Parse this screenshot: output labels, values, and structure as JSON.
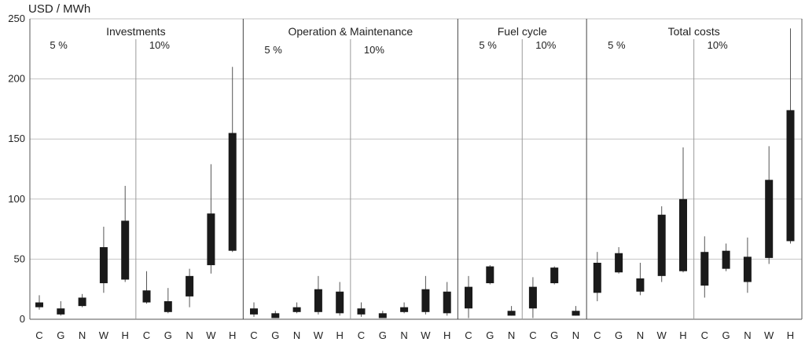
{
  "chart_data": {
    "type": "candlestick",
    "ylabel": "USD / MWh",
    "ylim": [
      0,
      250
    ],
    "yticks": [
      "0",
      "50",
      "100",
      "150",
      "200",
      "250"
    ],
    "grid": "horizontal",
    "categories": [
      "C",
      "G",
      "N",
      "W",
      "H"
    ],
    "groups": [
      {
        "title": "Investments",
        "subgroups": [
          {
            "rate": "5 %",
            "items": [
              {
                "cat": "C",
                "min": 8,
                "q1": 10,
                "q3": 14,
                "max": 20
              },
              {
                "cat": "G",
                "min": 3,
                "q1": 4,
                "q3": 9,
                "max": 15
              },
              {
                "cat": "N",
                "min": 10,
                "q1": 11,
                "q3": 18,
                "max": 21
              },
              {
                "cat": "W",
                "min": 22,
                "q1": 30,
                "q3": 60,
                "max": 77
              },
              {
                "cat": "H",
                "min": 31,
                "q1": 33,
                "q3": 82,
                "max": 111
              }
            ]
          },
          {
            "rate": "10%",
            "items": [
              {
                "cat": "C",
                "min": 13,
                "q1": 14,
                "q3": 24,
                "max": 40
              },
              {
                "cat": "G",
                "min": 5,
                "q1": 6,
                "q3": 15,
                "max": 26
              },
              {
                "cat": "N",
                "min": 10,
                "q1": 19,
                "q3": 36,
                "max": 42
              },
              {
                "cat": "W",
                "min": 38,
                "q1": 45,
                "q3": 88,
                "max": 129
              },
              {
                "cat": "H",
                "min": 56,
                "q1": 57,
                "q3": 155,
                "max": 210
              }
            ]
          }
        ]
      },
      {
        "title": "Operation & Maintenance",
        "subgroups": [
          {
            "rate": "5 %",
            "items": [
              {
                "cat": "C",
                "min": 2,
                "q1": 4,
                "q3": 9,
                "max": 14
              },
              {
                "cat": "G",
                "min": 1,
                "q1": 1,
                "q3": 5,
                "max": 7
              },
              {
                "cat": "N",
                "min": 5,
                "q1": 6,
                "q3": 10,
                "max": 14
              },
              {
                "cat": "W",
                "min": 4,
                "q1": 6,
                "q3": 25,
                "max": 36
              },
              {
                "cat": "H",
                "min": 3,
                "q1": 5,
                "q3": 23,
                "max": 31
              }
            ]
          },
          {
            "rate": "10%",
            "items": [
              {
                "cat": "C",
                "min": 2,
                "q1": 4,
                "q3": 9,
                "max": 14
              },
              {
                "cat": "G",
                "min": 1,
                "q1": 1,
                "q3": 5,
                "max": 7
              },
              {
                "cat": "N",
                "min": 5,
                "q1": 6,
                "q3": 10,
                "max": 14
              },
              {
                "cat": "W",
                "min": 4,
                "q1": 6,
                "q3": 25,
                "max": 36
              },
              {
                "cat": "H",
                "min": 3,
                "q1": 5,
                "q3": 23,
                "max": 31
              }
            ]
          }
        ]
      },
      {
        "title": "Fuel cycle",
        "subgroups": [
          {
            "rate": "5 %",
            "items": [
              {
                "cat": "C",
                "min": 1,
                "q1": 9,
                "q3": 27,
                "max": 36
              },
              {
                "cat": "G",
                "min": 29,
                "q1": 30,
                "q3": 44,
                "max": 45
              },
              {
                "cat": "N",
                "min": 3,
                "q1": 3,
                "q3": 7,
                "max": 11
              }
            ]
          },
          {
            "rate": "10%",
            "items": [
              {
                "cat": "C",
                "min": 1,
                "q1": 9,
                "q3": 27,
                "max": 35
              },
              {
                "cat": "G",
                "min": 29,
                "q1": 30,
                "q3": 43,
                "max": 44
              },
              {
                "cat": "N",
                "min": 3,
                "q1": 3,
                "q3": 7,
                "max": 11
              }
            ]
          }
        ]
      },
      {
        "title": "Total costs",
        "subgroups": [
          {
            "rate": "5 %",
            "items": [
              {
                "cat": "C",
                "min": 15,
                "q1": 22,
                "q3": 47,
                "max": 56
              },
              {
                "cat": "G",
                "min": 38,
                "q1": 39,
                "q3": 55,
                "max": 60
              },
              {
                "cat": "N",
                "min": 20,
                "q1": 23,
                "q3": 34,
                "max": 47
              },
              {
                "cat": "W",
                "min": 31,
                "q1": 36,
                "q3": 87,
                "max": 94
              },
              {
                "cat": "H",
                "min": 39,
                "q1": 40,
                "q3": 100,
                "max": 143
              }
            ]
          },
          {
            "rate": "10%",
            "items": [
              {
                "cat": "C",
                "min": 18,
                "q1": 28,
                "q3": 56,
                "max": 69
              },
              {
                "cat": "G",
                "min": 40,
                "q1": 42,
                "q3": 57,
                "max": 63
              },
              {
                "cat": "N",
                "min": 22,
                "q1": 31,
                "q3": 52,
                "max": 68
              },
              {
                "cat": "W",
                "min": 46,
                "q1": 51,
                "q3": 116,
                "max": 144
              },
              {
                "cat": "H",
                "min": 63,
                "q1": 65,
                "q3": 174,
                "max": 242
              }
            ]
          }
        ]
      }
    ]
  }
}
